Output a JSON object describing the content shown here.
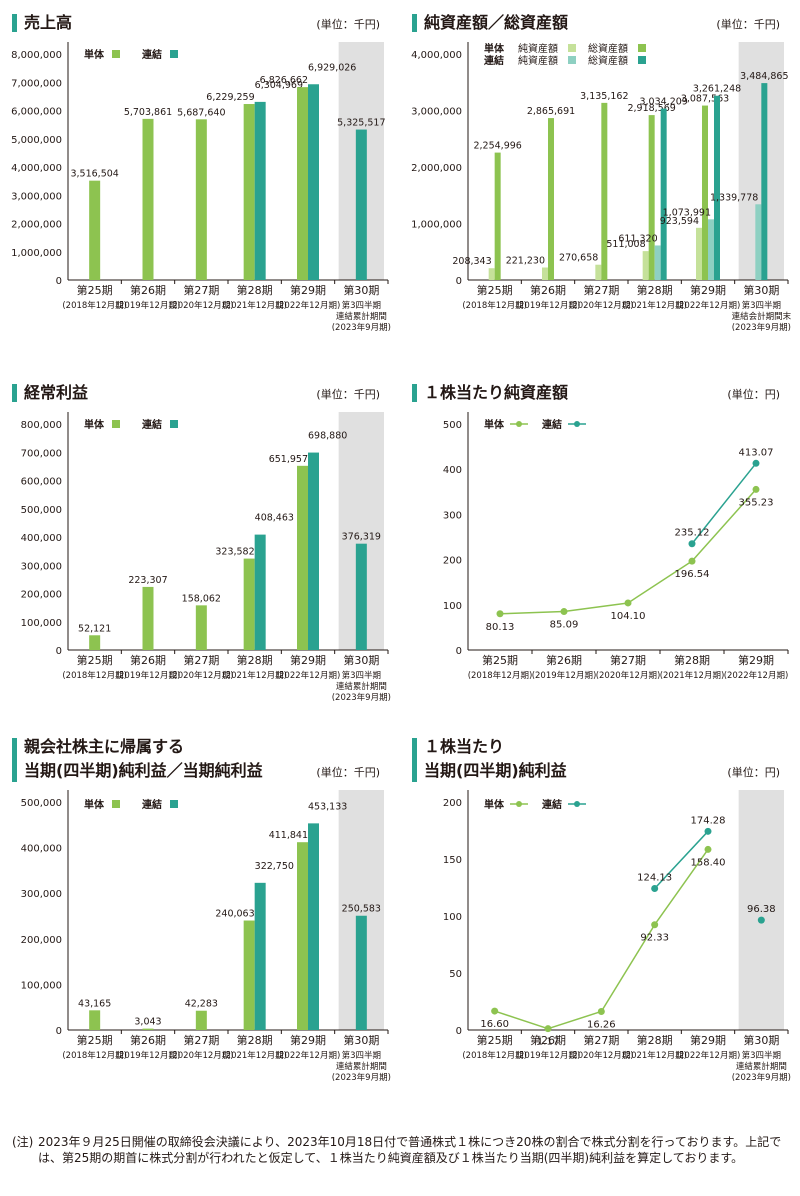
{
  "colors": {
    "single": "#8dc350",
    "consolidated": "#2aa290",
    "single_light": "#c5e19a",
    "consolidated_light": "#8ed0c2",
    "title_bar": "#2aa290",
    "shade": "#e0e0e0"
  },
  "chart_data": [
    {
      "type": "bar",
      "title": "売上高",
      "unit": "(単位：千円)",
      "legend": [
        "単体",
        "連結"
      ],
      "yticks": [
        "8,000,000",
        "7,000,000",
        "6,000,000",
        "5,000,000",
        "4,000,000",
        "3,000,000",
        "2,000,000",
        "1,000,000",
        "0"
      ],
      "ylim": [
        0,
        8000000
      ],
      "categories": [
        [
          "第25期",
          "(2018年12月期)"
        ],
        [
          "第26期",
          "(2019年12月期)"
        ],
        [
          "第27期",
          "(2020年12月期)"
        ],
        [
          "第28期",
          "(2021年12月期)"
        ],
        [
          "第29期",
          "(2022年12月期)"
        ],
        [
          "第30期",
          "第3四半期",
          "連結累計期間",
          "(2023年9月期)"
        ]
      ],
      "series": [
        {
          "name": "単体",
          "values": [
            3516504,
            5703861,
            5687640,
            6229259,
            6826662,
            null
          ],
          "labels": [
            "3,516,504",
            "5,703,861",
            "5,687,640",
            "6,229,259",
            "6,826,662",
            ""
          ]
        },
        {
          "name": "連結",
          "values": [
            null,
            null,
            null,
            6304969,
            6929026,
            5325517
          ],
          "labels": [
            "",
            "",
            "",
            "6,304,969",
            "6,929,026",
            "5,325,517"
          ]
        }
      ],
      "shaded_last": true
    },
    {
      "type": "bar",
      "title": "純資産額／総資産額",
      "unit": "(単位：千円)",
      "legend_rows": [
        {
          "label": "単体",
          "items": [
            "純資産額",
            "総資産額"
          ]
        },
        {
          "label": "連結",
          "items": [
            "純資産額",
            "総資産額"
          ]
        }
      ],
      "yticks": [
        "4,000,000",
        "3,000,000",
        "2,000,000",
        "1,000,000",
        "0"
      ],
      "ylim": [
        0,
        4000000
      ],
      "categories": [
        [
          "第25期",
          "(2018年12月期)"
        ],
        [
          "第26期",
          "(2019年12月期)"
        ],
        [
          "第27期",
          "(2020年12月期)"
        ],
        [
          "第28期",
          "(2021年12月期)"
        ],
        [
          "第29期",
          "(2022年12月期)"
        ],
        [
          "第30期",
          "第3四半期",
          "連結会計期間末",
          "(2023年9月期)"
        ]
      ],
      "series": [
        {
          "name": "単体 純資産額",
          "values": [
            208343,
            221230,
            270658,
            511008,
            923594,
            null
          ],
          "labels": [
            "208,343",
            "221,230",
            "270,658",
            "511,008",
            "923,594",
            ""
          ]
        },
        {
          "name": "単体 総資産額",
          "values": [
            2254996,
            2865691,
            3135162,
            2918569,
            3087563,
            null
          ],
          "labels": [
            "2,254,996",
            "2,865,691",
            "3,135,162",
            "2,918,569",
            "3,087,563",
            ""
          ]
        },
        {
          "name": "連結 純資産額",
          "values": [
            null,
            null,
            null,
            611320,
            1073991,
            1339778
          ],
          "labels": [
            "",
            "",
            "",
            "611,320",
            "1,073,991",
            "1,339,778"
          ]
        },
        {
          "name": "連結 総資産額",
          "values": [
            null,
            null,
            null,
            3034209,
            3261248,
            3484865
          ],
          "labels": [
            "",
            "",
            "",
            "3,034,209",
            "3,261,248",
            "3,484,865"
          ]
        }
      ],
      "shaded_last": true
    },
    {
      "type": "bar",
      "title": "経常利益",
      "unit": "(単位：千円)",
      "legend": [
        "単体",
        "連結"
      ],
      "yticks": [
        "800,000",
        "700,000",
        "600,000",
        "500,000",
        "400,000",
        "300,000",
        "200,000",
        "100,000",
        "0"
      ],
      "ylim": [
        0,
        800000
      ],
      "categories": [
        [
          "第25期",
          "(2018年12月期)"
        ],
        [
          "第26期",
          "(2019年12月期)"
        ],
        [
          "第27期",
          "(2020年12月期)"
        ],
        [
          "第28期",
          "(2021年12月期)"
        ],
        [
          "第29期",
          "(2022年12月期)"
        ],
        [
          "第30期",
          "第3四半期",
          "連結累計期間",
          "(2023年9月期)"
        ]
      ],
      "series": [
        {
          "name": "単体",
          "values": [
            52121,
            223307,
            158062,
            323582,
            651957,
            null
          ],
          "labels": [
            "52,121",
            "223,307",
            "158,062",
            "323,582",
            "651,957",
            ""
          ]
        },
        {
          "name": "連結",
          "values": [
            null,
            null,
            null,
            408463,
            698880,
            376319
          ],
          "labels": [
            "",
            "",
            "",
            "408,463",
            "698,880",
            "376,319"
          ]
        }
      ],
      "shaded_last": true
    },
    {
      "type": "line",
      "title": "１株当たり純資産額",
      "unit": "(単位：円)",
      "legend": [
        "単体",
        "連結"
      ],
      "yticks": [
        "500",
        "400",
        "300",
        "200",
        "100",
        "0"
      ],
      "ylim": [
        0,
        500
      ],
      "categories": [
        [
          "第25期",
          "(2018年12月期)"
        ],
        [
          "第26期",
          "(2019年12月期)"
        ],
        [
          "第27期",
          "(2020年12月期)"
        ],
        [
          "第28期",
          "(2021年12月期)"
        ],
        [
          "第29期",
          "(2022年12月期)"
        ]
      ],
      "series": [
        {
          "name": "単体",
          "values": [
            80.13,
            85.09,
            104.1,
            196.54,
            355.23
          ],
          "labels": [
            "80.13",
            "85.09",
            "104.10",
            "196.54",
            "355.23"
          ]
        },
        {
          "name": "連結",
          "values": [
            null,
            null,
            null,
            235.12,
            413.07
          ],
          "labels": [
            "",
            "",
            "",
            "235.12",
            "413.07"
          ]
        }
      ],
      "shaded_last": false
    },
    {
      "type": "bar",
      "title": "親会社株主に帰属する",
      "title2": "当期(四半期)純利益／当期純利益",
      "unit": "(単位：千円)",
      "legend": [
        "単体",
        "連結"
      ],
      "yticks": [
        "500,000",
        "400,000",
        "300,000",
        "200,000",
        "100,000",
        "0"
      ],
      "ylim": [
        0,
        500000
      ],
      "categories": [
        [
          "第25期",
          "(2018年12月期)"
        ],
        [
          "第26期",
          "(2019年12月期)"
        ],
        [
          "第27期",
          "(2020年12月期)"
        ],
        [
          "第28期",
          "(2021年12月期)"
        ],
        [
          "第29期",
          "(2022年12月期)"
        ],
        [
          "第30期",
          "第3四半期",
          "連結累計期間",
          "(2023年9月期)"
        ]
      ],
      "series": [
        {
          "name": "単体",
          "values": [
            43165,
            3043,
            42283,
            240063,
            411841,
            null
          ],
          "labels": [
            "43,165",
            "3,043",
            "42,283",
            "240,063",
            "411,841",
            ""
          ]
        },
        {
          "name": "連結",
          "values": [
            null,
            null,
            null,
            322750,
            453133,
            250583
          ],
          "labels": [
            "",
            "",
            "",
            "322,750",
            "453,133",
            "250,583"
          ]
        }
      ],
      "shaded_last": true
    },
    {
      "type": "line",
      "title": "１株当たり",
      "title2": "当期(四半期)純利益",
      "unit": "(単位：円)",
      "legend": [
        "単体",
        "連結"
      ],
      "yticks": [
        "200",
        "150",
        "100",
        "50",
        "0"
      ],
      "ylim": [
        0,
        200
      ],
      "categories": [
        [
          "第25期",
          "(2018年12月期)"
        ],
        [
          "第26期",
          "(2019年12月期)"
        ],
        [
          "第27期",
          "(2020年12月期)"
        ],
        [
          "第28期",
          "(2021年12月期)"
        ],
        [
          "第29期",
          "(2022年12月期)"
        ],
        [
          "第30期",
          "第3四半期",
          "連結累計期間",
          "(2023年9月期)"
        ]
      ],
      "series": [
        {
          "name": "単体",
          "values": [
            16.6,
            1.17,
            16.26,
            92.33,
            158.4,
            null
          ],
          "labels": [
            "16.60",
            "1.17",
            "16.26",
            "92.33",
            "158.40",
            ""
          ]
        },
        {
          "name": "連結",
          "values": [
            null,
            null,
            null,
            124.13,
            174.28,
            96.38
          ],
          "labels": [
            "",
            "",
            "",
            "124.13",
            "174.28",
            "96.38"
          ]
        }
      ],
      "shaded_last": true
    }
  ],
  "note": {
    "mark": "(注)",
    "text": "2023年９月25日開催の取締役会決議により、2023年10月18日付で普通株式１株につき20株の割合で株式分割を行っております。上記では、第25期の期首に株式分割が行われたと仮定して、１株当たり純資産額及び１株当たり当期(四半期)純利益を算定しております。"
  }
}
